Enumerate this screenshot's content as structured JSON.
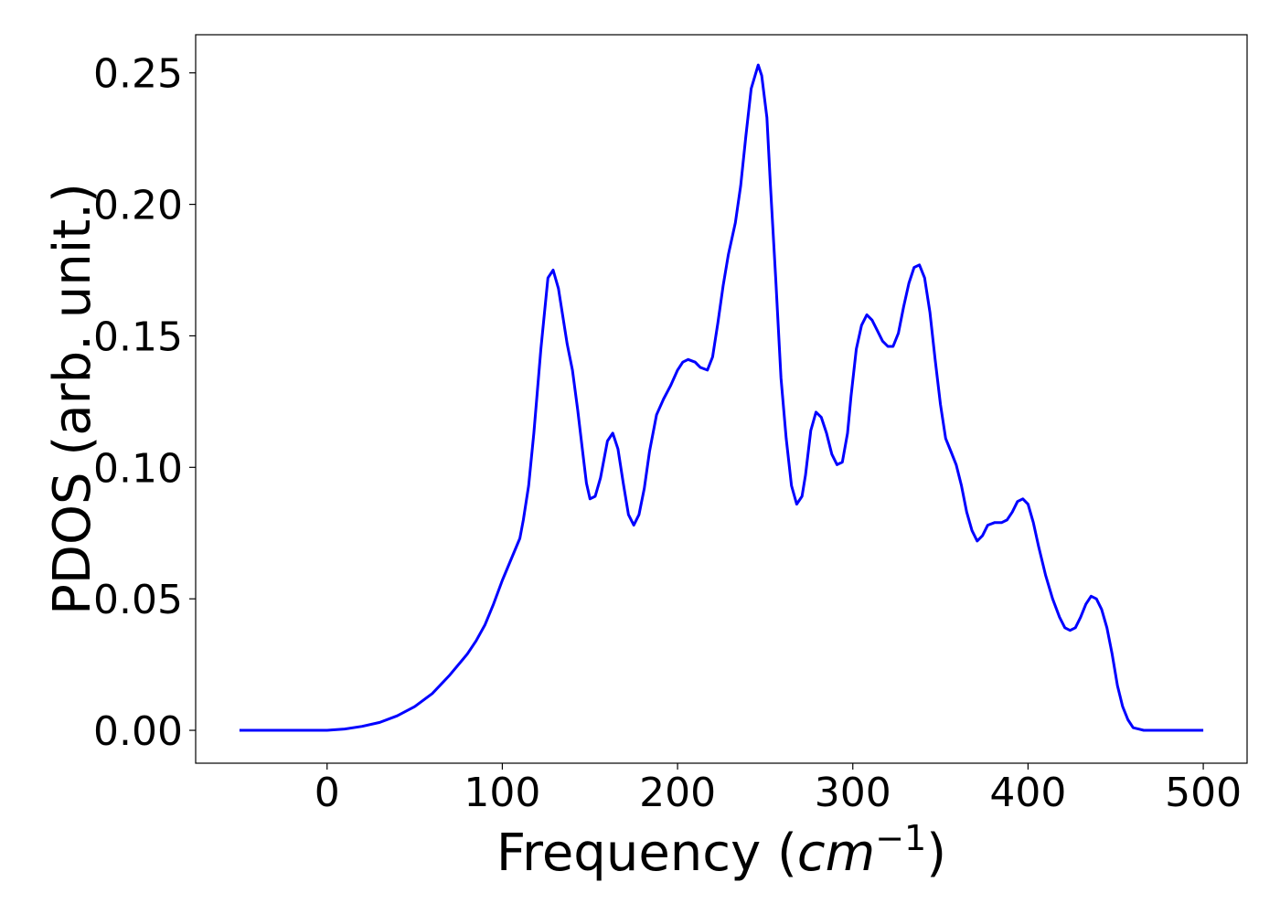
{
  "chart_data": {
    "type": "line",
    "title": "",
    "xlabel": "Frequency (cm⁻¹)",
    "xlabel_parts": {
      "prefix": "Frequency (",
      "math_base": "cm",
      "math_exp": "−1",
      "suffix": ")"
    },
    "ylabel": "PDOS (arb. unit.)",
    "xlim": [
      -75,
      525
    ],
    "ylim": [
      -0.0125,
      0.2645
    ],
    "xticks": [
      0,
      100,
      200,
      300,
      400,
      500
    ],
    "xtick_labels": [
      "0",
      "100",
      "200",
      "300",
      "400",
      "500"
    ],
    "yticks": [
      0.0,
      0.05,
      0.1,
      0.15,
      0.2,
      0.25
    ],
    "ytick_labels": [
      "0.00",
      "0.05",
      "0.10",
      "0.15",
      "0.20",
      "0.25"
    ],
    "grid": false,
    "legend": null,
    "series": [
      {
        "color": "#0000ff",
        "x": [
          -50,
          0,
          10,
          20,
          30,
          40,
          50,
          60,
          70,
          80,
          85,
          90,
          95,
          100,
          105,
          110,
          112,
          115,
          118,
          122,
          126,
          129,
          132,
          137,
          140,
          143,
          146,
          148,
          150,
          153,
          156,
          160,
          163,
          166,
          169,
          172,
          175,
          178,
          181,
          184,
          188,
          192,
          196,
          200,
          203,
          206,
          210,
          213,
          217,
          220,
          223,
          226,
          229,
          233,
          236,
          239,
          242,
          246,
          248,
          251,
          253,
          256,
          259,
          262,
          265,
          268,
          271,
          273,
          276,
          279,
          282,
          285,
          288,
          291,
          294,
          297,
          299,
          302,
          305,
          308,
          311,
          314,
          317,
          320,
          323,
          326,
          329,
          332,
          335,
          338,
          341,
          344,
          347,
          350,
          353,
          356,
          359,
          362,
          365,
          368,
          371,
          374,
          377,
          381,
          385,
          388,
          391,
          394,
          397,
          400,
          403,
          406,
          410,
          414,
          418,
          421,
          424,
          427,
          430,
          433,
          436,
          439,
          442,
          445,
          448,
          451,
          454,
          457,
          460,
          463,
          466,
          470,
          480,
          500
        ],
        "y": [
          0.0,
          0.0,
          0.0005,
          0.0015,
          0.003,
          0.0055,
          0.009,
          0.014,
          0.021,
          0.029,
          0.034,
          0.04,
          0.048,
          0.057,
          0.065,
          0.073,
          0.08,
          0.093,
          0.113,
          0.145,
          0.172,
          0.175,
          0.168,
          0.147,
          0.137,
          0.122,
          0.105,
          0.094,
          0.088,
          0.089,
          0.096,
          0.11,
          0.113,
          0.107,
          0.094,
          0.082,
          0.078,
          0.082,
          0.092,
          0.106,
          0.12,
          0.126,
          0.131,
          0.137,
          0.14,
          0.141,
          0.14,
          0.138,
          0.137,
          0.142,
          0.155,
          0.169,
          0.181,
          0.193,
          0.207,
          0.226,
          0.244,
          0.253,
          0.249,
          0.233,
          0.207,
          0.172,
          0.134,
          0.111,
          0.093,
          0.086,
          0.089,
          0.097,
          0.114,
          0.121,
          0.119,
          0.113,
          0.105,
          0.101,
          0.102,
          0.113,
          0.127,
          0.145,
          0.154,
          0.158,
          0.156,
          0.152,
          0.148,
          0.146,
          0.146,
          0.151,
          0.161,
          0.17,
          0.176,
          0.177,
          0.172,
          0.159,
          0.141,
          0.124,
          0.111,
          0.106,
          0.101,
          0.093,
          0.083,
          0.076,
          0.072,
          0.074,
          0.078,
          0.079,
          0.079,
          0.08,
          0.083,
          0.087,
          0.088,
          0.086,
          0.079,
          0.07,
          0.059,
          0.05,
          0.043,
          0.039,
          0.038,
          0.039,
          0.043,
          0.048,
          0.051,
          0.05,
          0.046,
          0.039,
          0.029,
          0.017,
          0.009,
          0.004,
          0.001,
          0.0005,
          0.0,
          0.0,
          0.0,
          0.0
        ]
      }
    ]
  }
}
